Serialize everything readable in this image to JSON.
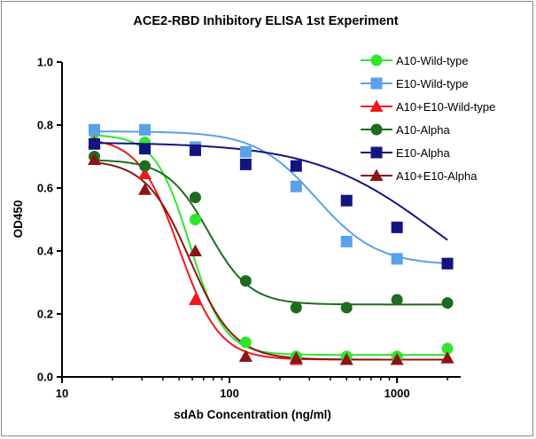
{
  "chart_data": {
    "type": "scatter",
    "title": "ACE2-RBD Inhibitory ELISA 1st Experiment",
    "xlabel": "sdAb Concentration (ng/ml)",
    "ylabel": "OD450",
    "xscale": "log",
    "xlim": [
      10,
      2400
    ],
    "ylim": [
      0,
      1.0
    ],
    "xticks": [
      10,
      100,
      1000
    ],
    "xtick_labels": [
      "10",
      "100",
      "1000"
    ],
    "yticks": [
      0,
      0.2,
      0.4,
      0.6,
      0.8,
      1.0
    ],
    "ytick_labels": [
      "0.0",
      "0.2",
      "0.4",
      "0.6",
      "0.8",
      "1.0"
    ],
    "x": [
      15.6,
      31.25,
      62.5,
      125,
      250,
      500,
      1000,
      2000
    ],
    "legend_position": "top-right",
    "series": [
      {
        "name": "A10-Wild-type",
        "color": "#2ee62e",
        "marker": "circle",
        "values": [
          0.775,
          0.745,
          0.5,
          0.11,
          0.065,
          0.065,
          0.065,
          0.09
        ],
        "fit": {
          "top": 0.77,
          "bottom": 0.07,
          "ec50": 58,
          "hill": 4.2
        }
      },
      {
        "name": "E10-Wild-type",
        "color": "#5aa0ea",
        "marker": "square",
        "values": [
          0.785,
          0.785,
          0.73,
          0.715,
          0.605,
          0.43,
          0.375,
          0.36
        ],
        "fit": {
          "top": 0.78,
          "bottom": 0.355,
          "ec50": 330,
          "hill": 2.4
        }
      },
      {
        "name": "A10+E10-Wild-type",
        "color": "#f01818",
        "marker": "triangle",
        "values": [
          0.745,
          0.645,
          0.245,
          0.065,
          0.055,
          0.055,
          0.055,
          0.06
        ],
        "fit": {
          "top": 0.76,
          "bottom": 0.055,
          "ec50": 50,
          "hill": 3.6
        }
      },
      {
        "name": "A10-Alpha",
        "color": "#1f6b1f",
        "marker": "circle",
        "values": [
          0.7,
          0.67,
          0.57,
          0.305,
          0.22,
          0.22,
          0.245,
          0.235
        ],
        "fit": {
          "top": 0.69,
          "bottom": 0.23,
          "ec50": 75,
          "hill": 3.5
        }
      },
      {
        "name": "E10-Alpha",
        "color": "#141480",
        "marker": "square",
        "values": [
          0.74,
          0.725,
          0.72,
          0.675,
          0.67,
          0.56,
          0.475,
          0.36
        ],
        "fit": {
          "top": 0.745,
          "bottom": 0.18,
          "ec50": 1700,
          "hill": 1.2
        }
      },
      {
        "name": "A10+E10-Alpha",
        "color": "#8c1414",
        "marker": "triangle",
        "values": [
          0.69,
          0.595,
          0.4,
          0.065,
          0.06,
          0.055,
          0.055,
          0.06
        ],
        "fit": {
          "top": 0.69,
          "bottom": 0.055,
          "ec50": 58,
          "hill": 3.3
        }
      }
    ]
  }
}
